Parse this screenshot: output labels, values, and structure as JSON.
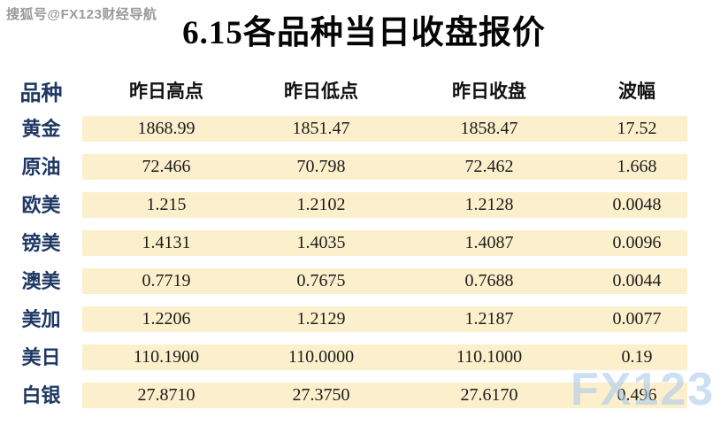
{
  "watermarks": {
    "top_left": "搜狐号@FX123财经导航",
    "bottom_right": "FX123"
  },
  "chart_data": {
    "type": "table",
    "title": "6.15各品种当日收盘报价",
    "columns": [
      "品种",
      "昨日高点",
      "昨日低点",
      "昨日收盘",
      "波幅"
    ],
    "rows": [
      {
        "name": "黄金",
        "values": [
          "1868.99",
          "1851.47",
          "1858.47",
          "17.52"
        ]
      },
      {
        "name": "原油",
        "values": [
          "72.466",
          "70.798",
          "72.462",
          "1.668"
        ]
      },
      {
        "name": "欧美",
        "values": [
          "1.215",
          "1.2102",
          "1.2128",
          "0.0048"
        ]
      },
      {
        "name": "镑美",
        "values": [
          "1.4131",
          "1.4035",
          "1.4087",
          "0.0096"
        ]
      },
      {
        "name": "澳美",
        "values": [
          "0.7719",
          "0.7675",
          "0.7688",
          "0.0044"
        ]
      },
      {
        "name": "美加",
        "values": [
          "1.2206",
          "1.2129",
          "1.2187",
          "0.0077"
        ]
      },
      {
        "name": "美日",
        "values": [
          "110.1900",
          "110.0000",
          "110.1000",
          "0.19"
        ]
      },
      {
        "name": "白银",
        "values": [
          "27.8710",
          "27.3750",
          "27.6170",
          "0.496"
        ]
      }
    ],
    "layout": {
      "row_stripe_color": "#fcf0cc",
      "label_color": "#1e3864",
      "header_color": "#111111",
      "watermark_blue": "#aecbea",
      "background": "#ffffff"
    }
  }
}
